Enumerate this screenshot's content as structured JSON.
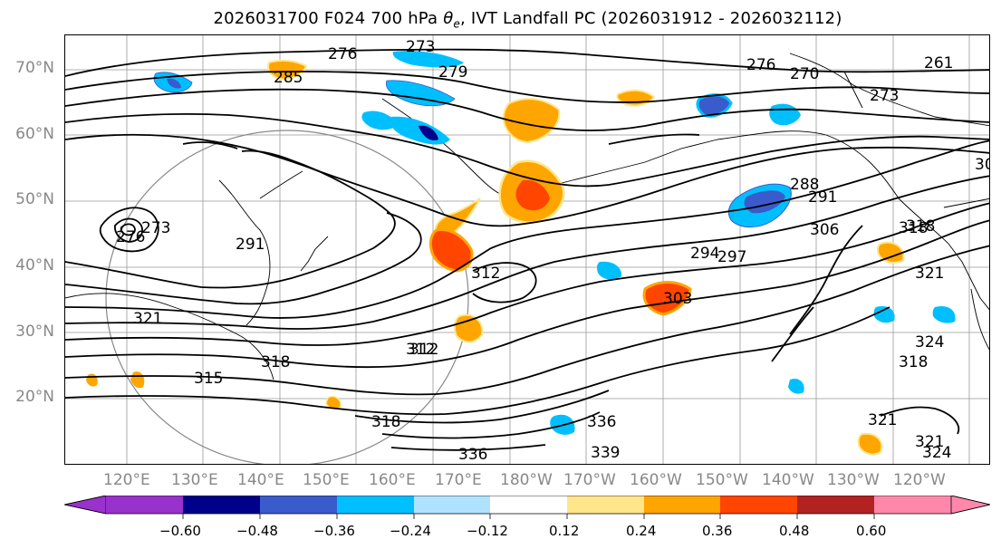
{
  "title": {
    "prefix": "2026031700 F024 700 hPa ",
    "theta_symbol": "θ",
    "theta_sub": "e",
    "suffix": ", IVT Landfall PC (2026031912 - 2026032112)"
  },
  "map": {
    "lat_labels": [
      "70°N",
      "60°N",
      "50°N",
      "40°N",
      "30°N",
      "20°N"
    ],
    "lon_labels": [
      "120°E",
      "130°E",
      "140°E",
      "150°E",
      "160°E",
      "170°E",
      "180°W",
      "170°W",
      "160°W",
      "150°W",
      "140°W",
      "130°W",
      "120°W"
    ],
    "contour_labels": [
      "276",
      "273",
      "279",
      "285",
      "276",
      "270",
      "273",
      "261",
      "30",
      "288",
      "306",
      "318",
      "321",
      "276",
      "273",
      "291",
      "297",
      "294",
      "312",
      "321",
      "318",
      "315",
      "312",
      "318",
      "324",
      "318",
      "321",
      "321",
      "324",
      "336",
      "339",
      "336",
      "318",
      "312",
      "303",
      "291"
    ]
  },
  "colorbar": {
    "colors": [
      "#9932cc",
      "#00008b",
      "#3a5bcc",
      "#00bfff",
      "#b0e2ff",
      "#ffffff",
      "#ffe68a",
      "#ffa500",
      "#ff4500",
      "#b22222",
      "#ff88aa"
    ],
    "tick_labels": [
      "−0.60",
      "−0.48",
      "−0.36",
      "−0.24",
      "−0.12",
      "0.12",
      "0.24",
      "0.36",
      "0.48",
      "0.60"
    ]
  }
}
